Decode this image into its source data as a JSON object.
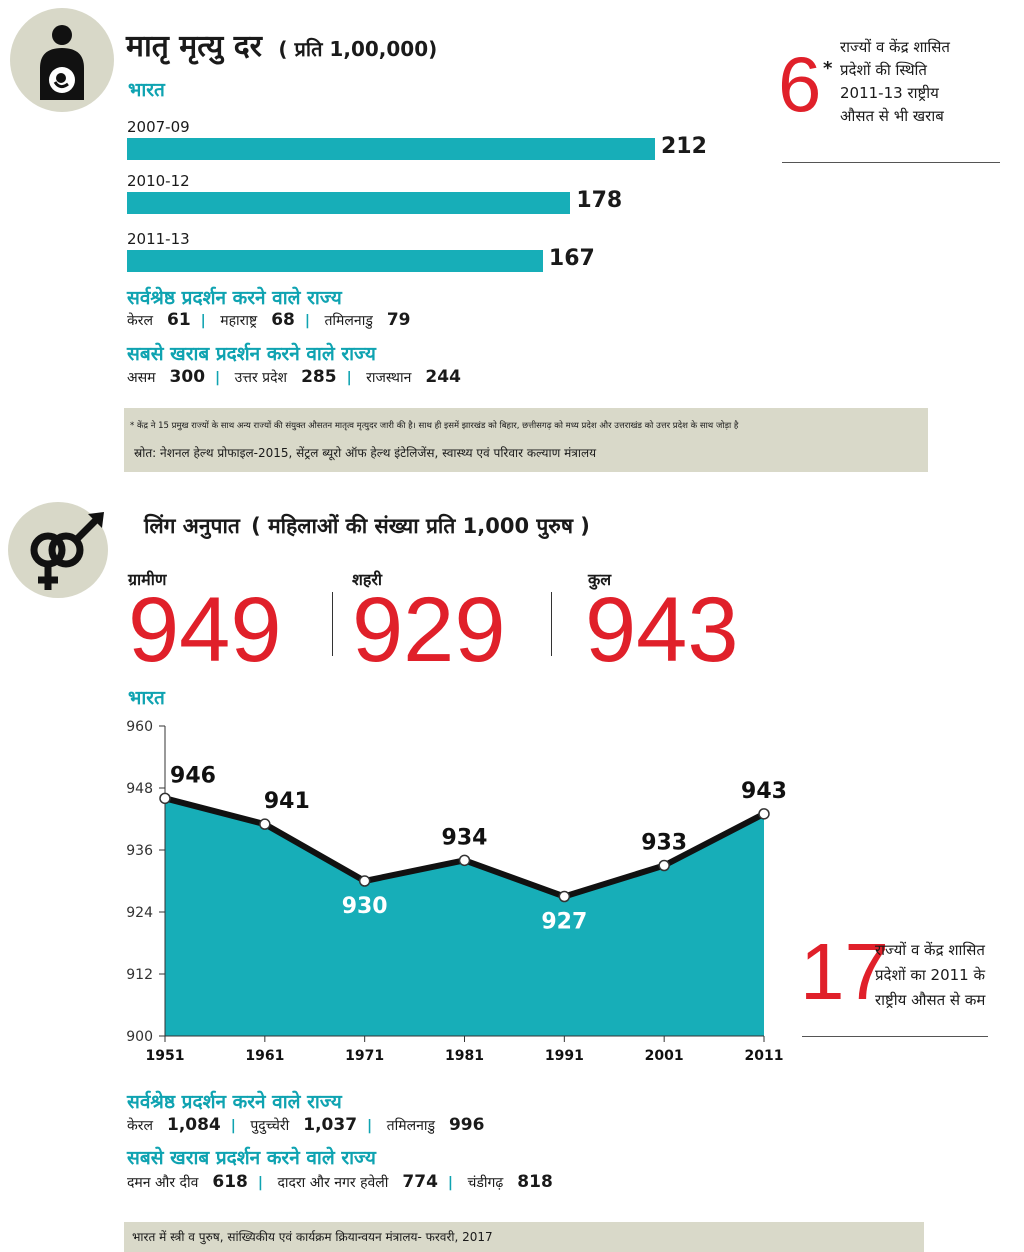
{
  "mmr": {
    "title": "मातृ मृत्यु दर",
    "subtitle": "( प्रति 1,00,000)",
    "region": "भारत",
    "bars": [
      {
        "year": "2007-09",
        "value": 212
      },
      {
        "year": "2010-12",
        "value": 178
      },
      {
        "year": "2011-13",
        "value": 167
      }
    ],
    "best_label": "सर्वश्रेष्ठ प्रदर्शन करने वाले राज्य",
    "best": [
      {
        "state": "केरल",
        "value": "61"
      },
      {
        "state": "महाराष्ट्र",
        "value": "68"
      },
      {
        "state": "तमिलनाडु",
        "value": "79"
      }
    ],
    "worst_label": "सबसे खराब प्रदर्शन करने वाले राज्य",
    "worst": [
      {
        "state": "असम",
        "value": "300"
      },
      {
        "state": "उत्तर प्रदेश",
        "value": "285"
      },
      {
        "state": "राजस्थान",
        "value": "244"
      }
    ],
    "callout_number": "6",
    "callout_star": "*",
    "callout_text_1": "राज्यों व केंद्र शासित",
    "callout_text_2": "प्रदेशों की स्थिति",
    "callout_text_3": "2011-13 राष्ट्रीय",
    "callout_text_4": "औसत से भी खराब",
    "footnote": "* केंद्र ने 15 प्रमुख राज्यों के साथ अन्य राज्यों की संयुक्त औसतन मातृत्व मृत्युदर जारी की है। साथ ही इसमें झारखंड को बिहार, छत्तीसगढ़ को मध्य प्रदेश और उत्तराखंड को उत्तर प्रदेश के साथ जोड़ा है",
    "source": "स्रोत: नेशनल हेल्थ प्रोफाइल-2015, सेंट्रल ब्यूरो ऑफ हेल्थ इंटेलिजेंस, स्वास्थ्य एवं परिवार कल्याण मंत्रालय"
  },
  "sex_ratio": {
    "title": "लिंग अनुपात",
    "subtitle": "( महिलाओं की संख्या प्रति 1,000 पुरुष )",
    "rural_label": "ग्रामीण",
    "rural_value": "949",
    "urban_label": "शहरी",
    "urban_value": "929",
    "total_label": "कुल",
    "total_value": "943",
    "region": "भारत",
    "callout_number": "17",
    "callout_text_1": "राज्यों व केंद्र शासित",
    "callout_text_2": "प्रदेशों का 2011 के",
    "callout_text_3": "राष्ट्रीय औसत से कम",
    "best_label": "सर्वश्रेष्ठ प्रदर्शन करने वाले राज्य",
    "best": [
      {
        "state": "केरल",
        "value": "1,084"
      },
      {
        "state": "पुदुच्चेरी",
        "value": "1,037"
      },
      {
        "state": "तमिलनाडु",
        "value": "996"
      }
    ],
    "worst_label": "सबसे खराब प्रदर्शन करने वाले राज्य",
    "worst": [
      {
        "state": "दमन और दीव",
        "value": "618"
      },
      {
        "state": "दादरा और नगर हवेली",
        "value": "774"
      },
      {
        "state": "चंडीगढ़",
        "value": "818"
      }
    ],
    "source": "भारत में स्त्री व पुरुष, सांख्यिकीय एवं कार्यक्रम क्रियान्वयन मंत्रालय- फरवरी, 2017"
  },
  "colors": {
    "teal": "#17aeb8",
    "red": "#e0202a",
    "note_bg": "#d9d9c9",
    "icon_bg": "#d8d8c8"
  },
  "icons": [
    "pregnant-woman-icon",
    "gender-symbol-icon"
  ],
  "chart_data": [
    {
      "type": "bar",
      "orientation": "horizontal",
      "title": "मातृ मृत्यु दर",
      "categories": [
        "2007-09",
        "2010-12",
        "2011-13"
      ],
      "values": [
        212,
        178,
        167
      ]
    },
    {
      "type": "area",
      "x": [
        1951,
        1961,
        1971,
        1981,
        1991,
        2001,
        2011
      ],
      "values": [
        946,
        941,
        930,
        934,
        927,
        933,
        943
      ],
      "yticks": [
        900,
        912,
        924,
        936,
        948,
        960
      ],
      "ylim": [
        900,
        960
      ],
      "grid": false
    }
  ]
}
